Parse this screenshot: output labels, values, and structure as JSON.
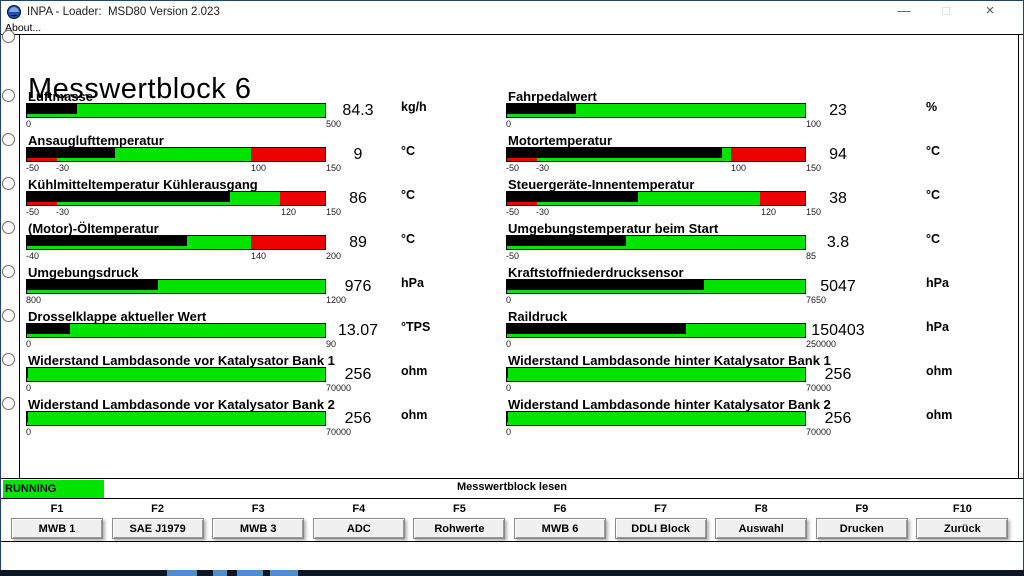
{
  "window": {
    "title": "INPA - Loader:  MSD80 Version 2.023",
    "controls": {
      "minimize": "—",
      "maximize": "□",
      "close": "×"
    }
  },
  "menu": {
    "about_label": "About..."
  },
  "page": {
    "heading": "Messwertblock 6"
  },
  "status": {
    "state_label": "RUNNING",
    "action_label": "Messwertblock lesen"
  },
  "colors": {
    "green": "#00e400",
    "red": "#ee0000",
    "fill": "#000000",
    "running_bg": "#00e400",
    "taskbar": "#0c1624",
    "taskbar_highlight": "#4f8ec9"
  },
  "function_keys": [
    {
      "key": "F1",
      "label": "MWB 1"
    },
    {
      "key": "F2",
      "label": "SAE J1979"
    },
    {
      "key": "F3",
      "label": "MWB 3"
    },
    {
      "key": "F4",
      "label": "ADC"
    },
    {
      "key": "F5",
      "label": "Rohwerte"
    },
    {
      "key": "F6",
      "label": "MWB 6"
    },
    {
      "key": "F7",
      "label": "DDLI Block"
    },
    {
      "key": "F8",
      "label": "Auswahl"
    },
    {
      "key": "F9",
      "label": "Drucken"
    },
    {
      "key": "F10",
      "label": "Zurück"
    }
  ],
  "gauges": {
    "left": [
      {
        "label": "Luftmasse",
        "value": "84.3",
        "value_num": 84.3,
        "unit": "kg/h",
        "min": 0,
        "max": 500,
        "ticks": [
          0,
          500
        ],
        "zones": [
          {
            "from": 0,
            "to": 500,
            "color": "green"
          }
        ]
      },
      {
        "label": "Ansauglufttemperatur",
        "value": "9",
        "value_num": 9,
        "unit": "°C",
        "min": -50,
        "max": 150,
        "ticks": [
          -50,
          -30,
          100,
          150
        ],
        "zones": [
          {
            "from": -50,
            "to": -30,
            "color": "red"
          },
          {
            "from": -30,
            "to": 100,
            "color": "green"
          },
          {
            "from": 100,
            "to": 150,
            "color": "red"
          }
        ]
      },
      {
        "label": "Kühlmitteltemperatur Kühlerausgang",
        "value": "86",
        "value_num": 86,
        "unit": "°C",
        "min": -50,
        "max": 150,
        "ticks": [
          -50,
          -30,
          120,
          150
        ],
        "zones": [
          {
            "from": -50,
            "to": -30,
            "color": "red"
          },
          {
            "from": -30,
            "to": 120,
            "color": "green"
          },
          {
            "from": 120,
            "to": 150,
            "color": "red"
          }
        ]
      },
      {
        "label": "(Motor)-Öltemperatur",
        "value": "89",
        "value_num": 89,
        "unit": "°C",
        "min": -40,
        "max": 200,
        "ticks": [
          -40,
          140,
          200
        ],
        "zones": [
          {
            "from": -40,
            "to": 140,
            "color": "green"
          },
          {
            "from": 140,
            "to": 200,
            "color": "red"
          }
        ]
      },
      {
        "label": "Umgebungsdruck",
        "value": "976",
        "value_num": 976,
        "unit": "hPa",
        "min": 800,
        "max": 1200,
        "ticks": [
          800,
          1200
        ],
        "zones": [
          {
            "from": 800,
            "to": 1200,
            "color": "green"
          }
        ]
      },
      {
        "label": "Drosselklappe aktueller Wert",
        "value": "13.07",
        "value_num": 13.07,
        "unit": "°TPS",
        "min": 0,
        "max": 90,
        "ticks": [
          0,
          90
        ],
        "zones": [
          {
            "from": 0,
            "to": 90,
            "color": "green"
          }
        ]
      },
      {
        "label": "Widerstand Lambdasonde vor Katalysator Bank 1",
        "value": "256",
        "value_num": 256,
        "unit": "ohm",
        "min": 0,
        "max": 70000,
        "ticks": [
          0,
          70000
        ],
        "zones": [
          {
            "from": 0,
            "to": 70000,
            "color": "green"
          }
        ]
      },
      {
        "label": "Widerstand Lambdasonde vor Katalysator Bank 2",
        "value": "256",
        "value_num": 256,
        "unit": "ohm",
        "min": 0,
        "max": 70000,
        "ticks": [
          0,
          70000
        ],
        "zones": [
          {
            "from": 0,
            "to": 70000,
            "color": "green"
          }
        ]
      }
    ],
    "right": [
      {
        "label": "Fahrpedalwert",
        "value": "23",
        "value_num": 23,
        "unit": "%",
        "min": 0,
        "max": 100,
        "ticks": [
          0,
          100
        ],
        "zones": [
          {
            "from": 0,
            "to": 100,
            "color": "green"
          }
        ]
      },
      {
        "label": "Motortemperatur",
        "value": "94",
        "value_num": 94,
        "unit": "°C",
        "min": -50,
        "max": 150,
        "ticks": [
          -50,
          -30,
          100,
          150
        ],
        "zones": [
          {
            "from": -50,
            "to": -30,
            "color": "red"
          },
          {
            "from": -30,
            "to": 100,
            "color": "green"
          },
          {
            "from": 100,
            "to": 150,
            "color": "red"
          }
        ]
      },
      {
        "label": "Steuergeräte-Innentemperatur",
        "value": "38",
        "value_num": 38,
        "unit": "°C",
        "min": -50,
        "max": 150,
        "ticks": [
          -50,
          -30,
          120,
          150
        ],
        "zones": [
          {
            "from": -50,
            "to": -30,
            "color": "red"
          },
          {
            "from": -30,
            "to": 120,
            "color": "green"
          },
          {
            "from": 120,
            "to": 150,
            "color": "red"
          }
        ]
      },
      {
        "label": "Umgebungstemperatur beim Start",
        "value": "3.8",
        "value_num": 3.8,
        "unit": "°C",
        "min": -50,
        "max": 85,
        "ticks": [
          -50,
          85
        ],
        "zones": [
          {
            "from": -50,
            "to": 85,
            "color": "green"
          }
        ]
      },
      {
        "label": "Kraftstoffniederdrucksensor",
        "value": "5047",
        "value_num": 5047,
        "unit": "hPa",
        "min": 0,
        "max": 7650,
        "ticks": [
          0,
          7650
        ],
        "zones": [
          {
            "from": 0,
            "to": 7650,
            "color": "green"
          }
        ]
      },
      {
        "label": "Raildruck",
        "value": "150403",
        "value_num": 150403,
        "unit": "hPa",
        "min": 0,
        "max": 250000,
        "ticks": [
          0,
          250000
        ],
        "zones": [
          {
            "from": 0,
            "to": 250000,
            "color": "green"
          }
        ]
      },
      {
        "label": "Widerstand Lambdasonde hinter Katalysator Bank 1",
        "value": "256",
        "value_num": 256,
        "unit": "ohm",
        "min": 0,
        "max": 70000,
        "ticks": [
          0,
          70000
        ],
        "zones": [
          {
            "from": 0,
            "to": 70000,
            "color": "green"
          }
        ]
      },
      {
        "label": "Widerstand Lambdasonde hinter Katalysator Bank 2",
        "value": "256",
        "value_num": 256,
        "unit": "ohm",
        "min": 0,
        "max": 70000,
        "ticks": [
          0,
          70000
        ],
        "zones": [
          {
            "from": 0,
            "to": 70000,
            "color": "green"
          }
        ]
      }
    ]
  }
}
